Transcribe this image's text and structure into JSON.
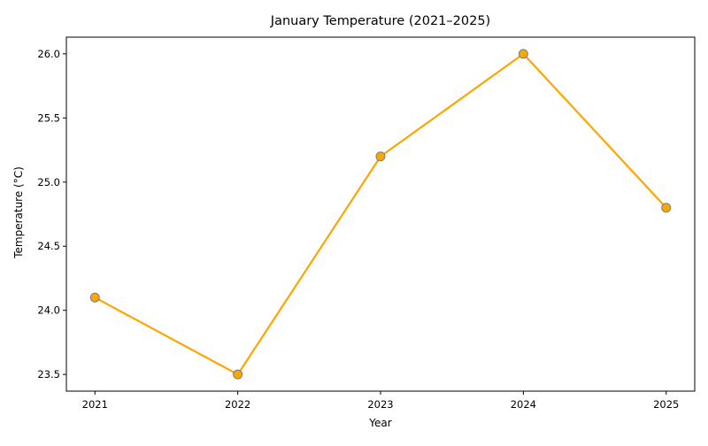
{
  "chart_data": {
    "type": "line",
    "title": "January Temperature (2021–2025)",
    "xlabel": "Year",
    "ylabel": "Temperature (°C)",
    "x": [
      2021,
      2022,
      2023,
      2024,
      2025
    ],
    "series": [
      {
        "values": [
          24.1,
          23.5,
          25.2,
          26.0,
          24.8
        ],
        "color": "#ffa500",
        "marker": "circle",
        "marker_edge_color": "#708090"
      }
    ],
    "ylim": [
      23.37,
      26.13
    ],
    "xlim": [
      2020.8,
      2025.2
    ],
    "y_ticks": [
      "23.5",
      "24.0",
      "24.5",
      "25.0",
      "25.5",
      "26.0"
    ],
    "x_ticks": [
      "2021",
      "2022",
      "2023",
      "2024",
      "2025"
    ],
    "grid": false,
    "legend": "none"
  }
}
